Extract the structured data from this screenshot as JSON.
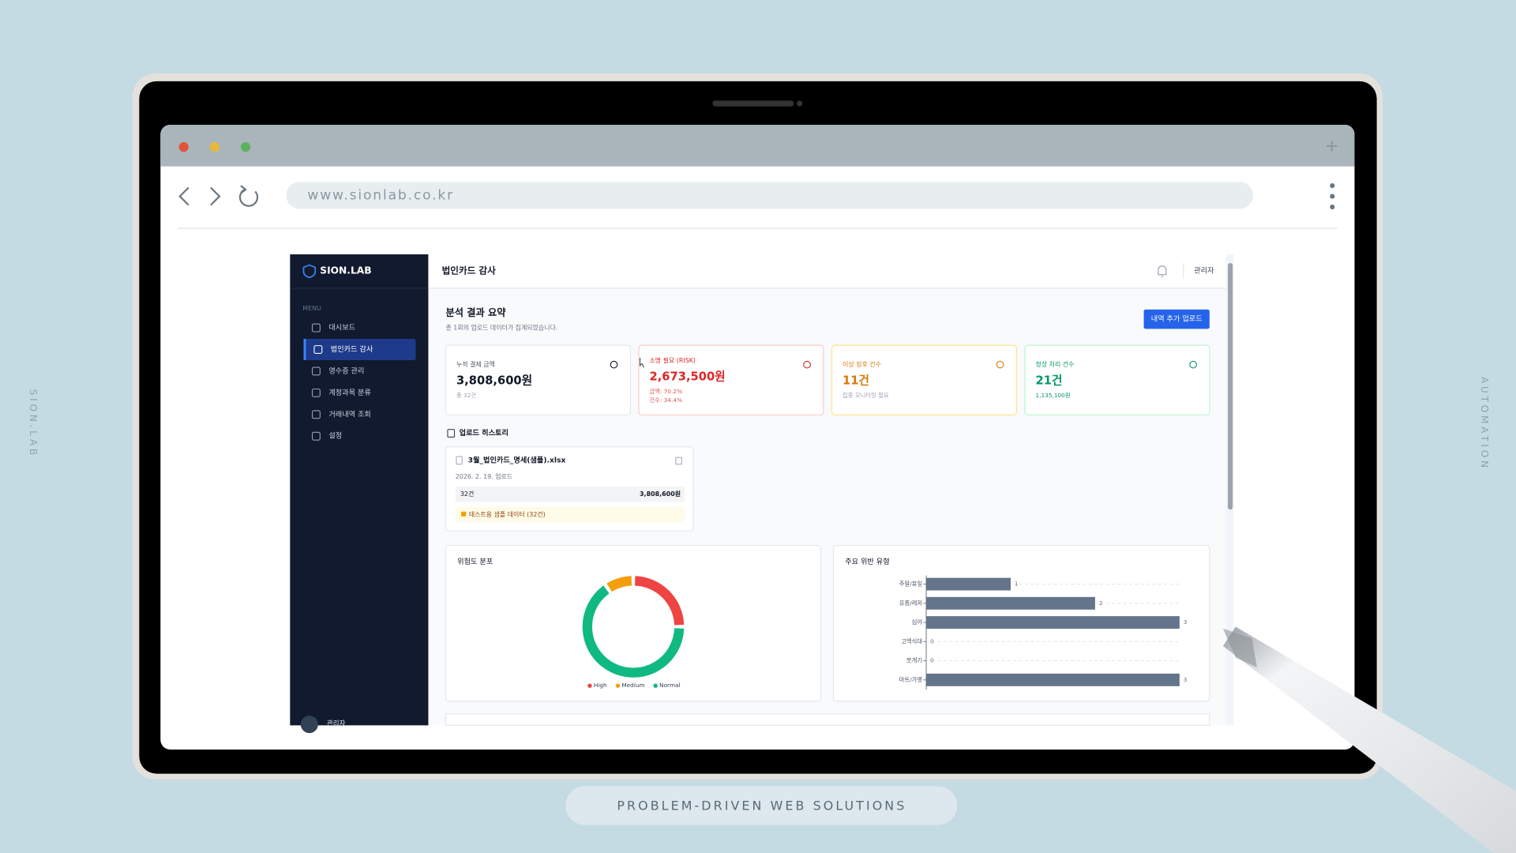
{
  "side_labels": {
    "left": "SION.LAB",
    "right": "AUTOMATION"
  },
  "tagline": "PROBLEM-DRIVEN WEB SOLUTIONS",
  "browser": {
    "url": "www.sionlab.co.kr"
  },
  "app": {
    "brand": "SION.LAB",
    "menu_label": "MENU",
    "menu": [
      "대시보드",
      "법인카드 감사",
      "영수증 관리",
      "계정과목 분류",
      "거래내역 조회",
      "설정"
    ],
    "active_menu": 1,
    "user": "관리자",
    "page_title": "법인카드 감사",
    "header_user": "관리자",
    "summary": {
      "title": "분석 결과 요약",
      "subtitle": "총 1회의 업로드 데이터가 집계되었습니다.",
      "button": "내역 추가 업로드"
    },
    "cards": [
      {
        "label": "누적 결제 금액",
        "value": "3,808,600원",
        "notes": [
          "총 32건"
        ],
        "color": "#111827",
        "border": "#e5e7eb"
      },
      {
        "label": "소명 필요 (RISK)",
        "value": "2,673,500원",
        "notes": [
          "금액: 70.2%",
          "건수: 34.4%"
        ],
        "color": "#dc2626",
        "border": "#fecaca"
      },
      {
        "label": "이상 징후 건수",
        "value": "11건",
        "notes": [
          "집중 모니터링 필요"
        ],
        "color": "#d97706",
        "border": "#fde68a"
      },
      {
        "label": "정상 처리 건수",
        "value": "21건",
        "notes": [
          "1,135,100원"
        ],
        "color": "#059669",
        "border": "#bbf7d0"
      }
    ],
    "history": {
      "title": "업로드 히스토리",
      "file": "3월_법인카드_명세(샘플).xlsx",
      "date": "2026. 2. 19. 업로드",
      "count": "32건",
      "amount": "3,808,600원",
      "tag": "테스트용 샘플 데이터 (32건)"
    }
  },
  "chart_data": [
    {
      "type": "pie",
      "donut": true,
      "title": "위험도 분포",
      "categories": [
        "High",
        "Medium",
        "Normal"
      ],
      "values": [
        8,
        3,
        21
      ],
      "colors": [
        "#ef4444",
        "#f59e0b",
        "#10b981"
      ]
    },
    {
      "type": "bar",
      "orientation": "horizontal",
      "title": "주요 위반 유형",
      "categories": [
        "주말/휴일",
        "유흥/레저",
        "심야",
        "고액식대",
        "쪼개기",
        "마트/가맹"
      ],
      "values": [
        1,
        2,
        3,
        0,
        0,
        3
      ],
      "xlim": [
        0,
        3
      ],
      "color": "#64748b",
      "grid": true
    }
  ]
}
